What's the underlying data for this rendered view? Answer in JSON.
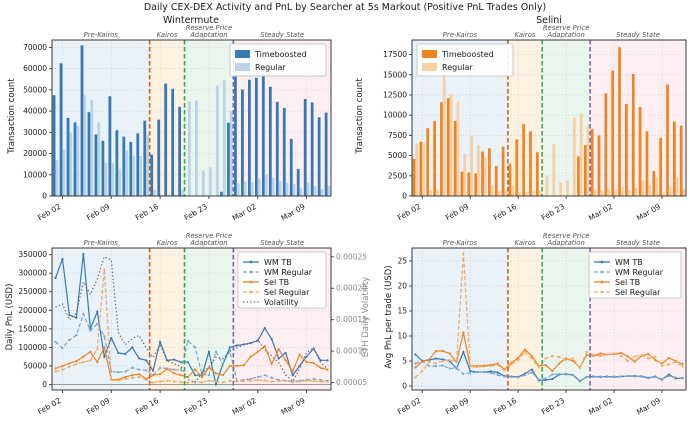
{
  "figure": {
    "title": "Daily CEX-DEX Activity and PnL by Searcher at 5s Markout (Positive PnL Trades Only)"
  },
  "dates": [
    "Feb 01",
    "Feb 02",
    "Feb 03",
    "Feb 04",
    "Feb 05",
    "Feb 06",
    "Feb 07",
    "Feb 08",
    "Feb 09",
    "Feb 10",
    "Feb 11",
    "Feb 12",
    "Feb 13",
    "Feb 14",
    "Feb 15",
    "Feb 16",
    "Feb 17",
    "Feb 18",
    "Feb 19",
    "Feb 20",
    "Feb 21",
    "Feb 22",
    "Feb 23",
    "Feb 24",
    "Feb 25",
    "Feb 26",
    "Feb 27",
    "Feb 28",
    "Mar 01",
    "Mar 02",
    "Mar 03",
    "Mar 04",
    "Mar 05",
    "Mar 06",
    "Mar 07",
    "Mar 08",
    "Mar 09",
    "Mar 10",
    "Mar 11",
    "Mar 12"
  ],
  "xticks": [
    {
      "index": 1,
      "label": "Feb 02"
    },
    {
      "index": 8,
      "label": "Feb 09"
    },
    {
      "index": 15,
      "label": "Feb 16"
    },
    {
      "index": 22,
      "label": "Feb 23"
    },
    {
      "index": 29,
      "label": "Mar 02"
    },
    {
      "index": 36,
      "label": "Mar 09"
    }
  ],
  "phases": [
    {
      "label_lines": [
        "Pre-Kairos"
      ],
      "start": -0.5,
      "end": 13.5,
      "bg": "#e9f1f9"
    },
    {
      "label_lines": [
        "Kairos"
      ],
      "start": 13.5,
      "end": 18.5,
      "bg": "#fdf1e2"
    },
    {
      "label_lines": [
        "Reserve Price",
        "Adaptation"
      ],
      "start": 18.5,
      "end": 25.5,
      "bg": "#eaf5ee"
    },
    {
      "label_lines": [
        "Steady State"
      ],
      "start": 25.5,
      "end": 39.5,
      "bg": "#fdeef2"
    }
  ],
  "vlines": [
    {
      "x": 13.5,
      "color": "#d2601a"
    },
    {
      "x": 18.5,
      "color": "#35a855"
    },
    {
      "x": 25.5,
      "color": "#7568ae"
    }
  ],
  "colors": {
    "wm_tb": "#3679b5",
    "wm_reg": "#b9d3e8",
    "sel_tb": "#ee8422",
    "sel_reg": "#f8cfa2",
    "volatility": "#666666",
    "phase_label": "#555555"
  },
  "chart_data": [
    {
      "type": "bar",
      "title": "Wintermute",
      "ylabel": "Transaction count",
      "ylim": [
        0,
        73500
      ],
      "yticks": [
        0,
        10000,
        20000,
        30000,
        40000,
        50000,
        60000,
        70000
      ],
      "legend_loc": "upper right",
      "series": [
        {
          "name": "Timeboosted",
          "color": "#3679b5",
          "values": [
            47500,
            62500,
            36800,
            34700,
            71000,
            39500,
            29000,
            26000,
            47000,
            31000,
            28000,
            25500,
            29500,
            35500,
            19500,
            36000,
            53000,
            50500,
            42000,
            0,
            0,
            0,
            0,
            0,
            2000,
            34500,
            57500,
            50200,
            54800,
            55700,
            60400,
            51500,
            44400,
            41500,
            26900,
            12800,
            45700,
            44100,
            37100,
            39300
          ]
        },
        {
          "name": "Regular",
          "color": "#b9d3e8",
          "values": [
            16800,
            22000,
            29800,
            33000,
            47500,
            45400,
            34700,
            15700,
            15500,
            12700,
            21300,
            19000,
            18800,
            28600,
            2900,
            500,
            600,
            700,
            3000,
            44500,
            45000,
            12000,
            13500,
            52000,
            54500,
            40000,
            6000,
            6800,
            6500,
            8200,
            10200,
            8600,
            7000,
            6300,
            5500,
            3600,
            6500,
            4700,
            3200,
            4800
          ]
        }
      ]
    },
    {
      "type": "bar",
      "title": "Selini",
      "ylabel": "Transaction count",
      "ylim": [
        0,
        19300
      ],
      "yticks": [
        0,
        2500,
        5000,
        7500,
        10000,
        12500,
        15000,
        17500
      ],
      "legend_loc": "upper left",
      "series": [
        {
          "name": "Timeboosted",
          "color": "#ee8422",
          "values": [
            4600,
            6700,
            8400,
            9300,
            11600,
            12100,
            9300,
            3000,
            2900,
            2800,
            5500,
            5900,
            3700,
            6100,
            4000,
            7000,
            8900,
            8000,
            5400,
            0,
            0,
            0,
            0,
            0,
            4900,
            6300,
            8300,
            7500,
            12700,
            15500,
            18400,
            11400,
            15100,
            11000,
            8000,
            3100,
            7200,
            13800,
            9200,
            8700
          ]
        },
        {
          "name": "Regular",
          "color": "#f8cfa2",
          "values": [
            6500,
            6600,
            700,
            800,
            15500,
            12600,
            11700,
            5200,
            7400,
            6300,
            4800,
            1300,
            600,
            700,
            1300,
            400,
            500,
            600,
            700,
            2400,
            6400,
            1700,
            1900,
            9700,
            10200,
            8900,
            800,
            700,
            900,
            800,
            1100,
            700,
            1000,
            1900,
            1300,
            2300,
            400,
            1200,
            2300,
            900
          ]
        }
      ]
    },
    {
      "type": "line",
      "title": "",
      "ylabel": "Daily PnL (USD)",
      "ylim": [
        -15000,
        368000
      ],
      "yticks": [
        0,
        50000,
        100000,
        150000,
        200000,
        250000,
        300000,
        350000
      ],
      "zero_line": true,
      "legend_loc": "upper right",
      "right_axis": {
        "label": "ETH Daily Volatility",
        "lim": [
          3.82e-05,
          0.000264
        ],
        "ticks": [
          {
            "value": 5e-05,
            "label": "0.00005"
          },
          {
            "value": 0.0001,
            "label": "0.00010"
          },
          {
            "value": 0.00015,
            "label": "0.00015"
          },
          {
            "value": 0.0002,
            "label": "0.00020"
          },
          {
            "value": 0.00025,
            "label": "0.00025"
          }
        ]
      },
      "series": [
        {
          "name": "WM TB",
          "color": "#3679b5",
          "dash": "solid",
          "marker": true,
          "axis": "left",
          "values": [
            287000,
            338000,
            187000,
            180000,
            352000,
            150000,
            196000,
            75000,
            125000,
            85000,
            82000,
            100000,
            70000,
            65000,
            37000,
            115000,
            65000,
            67000,
            60000,
            60000,
            25000,
            25000,
            88000,
            0,
            55000,
            100000,
            105000,
            108000,
            112000,
            118000,
            152000,
            122000,
            70000,
            85000,
            25000,
            50000,
            75000,
            97000,
            65000,
            65000
          ]
        },
        {
          "name": "WM Regular",
          "color": "#7da7cc",
          "dash": "dashed",
          "marker": true,
          "axis": "left",
          "values": [
            115000,
            98000,
            120000,
            133000,
            190000,
            145000,
            163000,
            130000,
            35000,
            33000,
            35000,
            45000,
            40000,
            38000,
            25000,
            45000,
            43000,
            40000,
            38000,
            118000,
            100000,
            28000,
            25000,
            88000,
            55000,
            90000,
            10000,
            12000,
            15000,
            20000,
            25000,
            18000,
            12000,
            10000,
            8000,
            10000,
            12000,
            15000,
            12000,
            10000
          ]
        },
        {
          "name": "Sel TB",
          "color": "#ee8422",
          "dash": "solid",
          "marker": true,
          "axis": "left",
          "values": [
            43000,
            50000,
            57000,
            63000,
            75000,
            88000,
            60000,
            100000,
            13000,
            13000,
            20000,
            25000,
            28000,
            15000,
            25000,
            28000,
            42000,
            30000,
            25000,
            20000,
            40000,
            20000,
            45000,
            30000,
            25000,
            50000,
            50000,
            52000,
            75000,
            88000,
            103000,
            55000,
            95000,
            65000,
            35000,
            80000,
            60000,
            58000,
            45000,
            40000
          ]
        },
        {
          "name": "Sel Regular",
          "color": "#f3aa60",
          "dash": "dashed",
          "marker": true,
          "axis": "left",
          "values": [
            35000,
            40000,
            48000,
            55000,
            60000,
            65000,
            95000,
            310000,
            12000,
            11000,
            15000,
            18000,
            20000,
            12000,
            5000,
            8000,
            10000,
            8000,
            6000,
            5000,
            8000,
            6000,
            10000,
            8000,
            6000,
            10000,
            8000,
            9000,
            10000,
            12000,
            10000,
            8000,
            9000,
            10000,
            6000,
            8000,
            10000,
            9000,
            8000,
            7000
          ]
        },
        {
          "name": "Volatility",
          "color": "#666666",
          "dash": "dotted",
          "marker": false,
          "axis": "right",
          "values": [
            0.00017,
            0.000175,
            0.00015,
            0.00016,
            0.00021,
            0.00019,
            0.000215,
            0.00025,
            0.000245,
            0.00013,
            0.00011,
            0.00012,
            0.000125,
            0.000105,
            9e-05,
            0.00011,
            8.5e-05,
            8e-05,
            7.5e-05,
            5.5e-05,
            5e-05,
            6.5e-05,
            7.5e-05,
            9e-05,
            8.8e-05,
            0.0001,
            0.000105,
            0.00011,
            0.000112,
            0.000118,
            0.000102,
            9.2e-05,
            8.2e-05,
            6.2e-05,
            5.2e-05,
            7.2e-05,
            9.8e-05,
            0.000105,
            8.2e-05,
            7.2e-05
          ]
        }
      ]
    },
    {
      "type": "line",
      "title": "",
      "ylabel": "Avg PnL per trade (USD)",
      "ylim": [
        -0.8,
        27.6
      ],
      "yticks": [
        0,
        5,
        10,
        15,
        20,
        25
      ],
      "legend_loc": "upper right",
      "series": [
        {
          "name": "WM TB",
          "color": "#3679b5",
          "dash": "solid",
          "marker": true,
          "axis": "left",
          "values": [
            6.3,
            5.0,
            5.2,
            5.5,
            5.3,
            5.0,
            3.5,
            6.8,
            3.0,
            2.8,
            2.8,
            2.9,
            2.7,
            2.0,
            1.9,
            1.8,
            2.5,
            3.3,
            1.1,
            1.2,
            1.4,
            2.3,
            2.4,
            2.2,
            1.0,
            1.8,
            1.9,
            1.8,
            1.9,
            1.8,
            1.9,
            2.0,
            2.0,
            1.9,
            1.6,
            1.9,
            1.3,
            2.3,
            1.5,
            1.6
          ]
        },
        {
          "name": "WM Regular",
          "color": "#7da7cc",
          "dash": "dashed",
          "marker": true,
          "axis": "left",
          "values": [
            4.5,
            4.9,
            4.0,
            4.0,
            4.1,
            3.5,
            3.6,
            2.4,
            2.6,
            2.8,
            2.8,
            2.6,
            2.2,
            1.9,
            1.8,
            1.7,
            2.2,
            2.7,
            1.3,
            1.5,
            2.3,
            2.4,
            2.3,
            2.2,
            0.9,
            1.8,
            1.8,
            1.9,
            1.8,
            1.9,
            1.9,
            2.0,
            1.9,
            2.0,
            1.7,
            1.8,
            1.4,
            2.0,
            1.7,
            1.5
          ]
        },
        {
          "name": "Sel TB",
          "color": "#ee8422",
          "dash": "solid",
          "marker": true,
          "axis": "left",
          "values": [
            3.7,
            4.9,
            5.3,
            7.0,
            7.0,
            6.5,
            4.8,
            10.7,
            4.0,
            4.0,
            4.1,
            4.2,
            4.5,
            3.3,
            4.6,
            5.6,
            7.3,
            6.0,
            4.0,
            4.2,
            3.0,
            4.5,
            5.5,
            5.0,
            3.7,
            6.2,
            6.0,
            6.5,
            6.3,
            6.4,
            6.6,
            5.9,
            4.9,
            6.0,
            6.4,
            5.2,
            4.5,
            5.6,
            5.0,
            4.4
          ]
        },
        {
          "name": "Sel Regular",
          "color": "#f3aa60",
          "dash": "dashed",
          "marker": true,
          "axis": "left",
          "values": [
            1.7,
            3.0,
            4.8,
            4.5,
            5.0,
            5.2,
            4.9,
            26.5,
            3.9,
            3.8,
            3.9,
            4.0,
            4.2,
            3.1,
            4.3,
            5.2,
            6.8,
            5.5,
            3.7,
            5.5,
            6.0,
            5.8,
            5.2,
            5.5,
            3.6,
            6.8,
            6.2,
            6.0,
            6.3,
            6.5,
            6.0,
            5.0,
            5.9,
            6.2,
            5.5,
            5.8,
            4.0,
            4.3,
            4.8,
            3.9
          ]
        }
      ]
    }
  ]
}
